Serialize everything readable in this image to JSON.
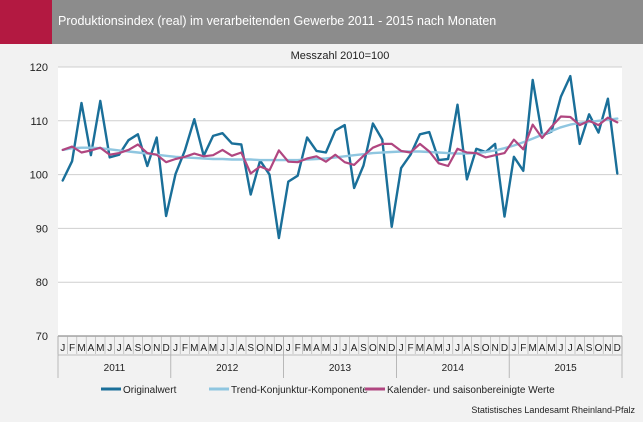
{
  "header": {
    "title": "Produktionsindex (real) im verarbeitenden Gewerbe 2011 - 2015 nach Monaten"
  },
  "source": "Statistisches Landesamt Rheinland-Pfalz",
  "colors": {
    "accent": "#b31941",
    "header": "#8c8c8c",
    "original": "#1a6f99",
    "trend": "#8fc6e0",
    "seasonal": "#b04680"
  },
  "chart_data": {
    "type": "line",
    "subtitle": "Messzahl 2010=100",
    "ylim": [
      70,
      120
    ],
    "yticks": [
      70,
      80,
      90,
      100,
      110,
      120
    ],
    "month_labels": [
      "J",
      "F",
      "M",
      "A",
      "M",
      "J",
      "J",
      "A",
      "S",
      "O",
      "N",
      "D"
    ],
    "years": [
      "2011",
      "2012",
      "2013",
      "2014",
      "2015"
    ],
    "grid": "horizontal",
    "legend_position": "bottom",
    "series": [
      {
        "name": "Originalwert",
        "color": "#1a6f99",
        "width": 2.4,
        "values": [
          98.9,
          102.5,
          113.3,
          103.6,
          113.7,
          103.2,
          103.7,
          106.4,
          107.5,
          101.6,
          106.9,
          92.3,
          100.1,
          104.5,
          110.3,
          103.5,
          107.2,
          107.7,
          105.8,
          105.6,
          96.3,
          102.6,
          100.0,
          88.2,
          98.7,
          99.8,
          106.9,
          104.4,
          104.1,
          108.2,
          109.2,
          97.5,
          101.7,
          109.5,
          106.5,
          90.3,
          101.2,
          103.7,
          107.5,
          107.9,
          102.7,
          102.9,
          113.0,
          99.1,
          104.8,
          104.2,
          105.7,
          92.2,
          103.3,
          100.7,
          117.6,
          107.3,
          108.0,
          114.5,
          118.3,
          105.7,
          111.2,
          107.8,
          114.1,
          100.2
        ]
      },
      {
        "name": "Trend-Konjunktur-Komponente",
        "color": "#8fc6e0",
        "width": 2.4,
        "values": [
          104.6,
          104.9,
          105.0,
          105.0,
          104.9,
          104.7,
          104.5,
          104.3,
          104.1,
          103.9,
          103.7,
          103.5,
          103.3,
          103.2,
          103.1,
          103.0,
          102.9,
          102.9,
          102.8,
          102.8,
          102.8,
          102.7,
          102.7,
          102.7,
          102.7,
          102.7,
          102.8,
          102.9,
          103.0,
          103.2,
          103.4,
          103.6,
          103.8,
          104.0,
          104.1,
          104.2,
          104.3,
          104.3,
          104.3,
          104.2,
          104.1,
          104.0,
          103.9,
          103.9,
          104.0,
          104.2,
          104.5,
          104.9,
          105.4,
          106.0,
          106.7,
          107.4,
          108.1,
          108.8,
          109.3,
          109.6,
          109.8,
          110.0,
          110.2,
          110.4
        ]
      },
      {
        "name": "Kalender- und saisonbereinigte Werte",
        "color": "#b04680",
        "width": 2.2,
        "values": [
          104.6,
          105.2,
          104.1,
          104.5,
          105.0,
          103.7,
          104.0,
          104.6,
          105.6,
          104.0,
          103.7,
          102.3,
          102.9,
          103.3,
          103.9,
          103.4,
          103.6,
          104.6,
          103.5,
          104.1,
          100.2,
          101.5,
          100.8,
          104.5,
          102.4,
          102.3,
          103.0,
          103.4,
          102.4,
          103.7,
          102.3,
          101.8,
          103.5,
          105.0,
          105.7,
          105.7,
          104.4,
          104.1,
          105.7,
          104.3,
          102.1,
          101.6,
          104.8,
          104.1,
          104.0,
          103.2,
          103.6,
          104.0,
          106.5,
          104.7,
          109.3,
          106.8,
          108.9,
          110.8,
          110.7,
          109.2,
          110.0,
          109.2,
          110.6,
          109.7
        ]
      }
    ]
  }
}
